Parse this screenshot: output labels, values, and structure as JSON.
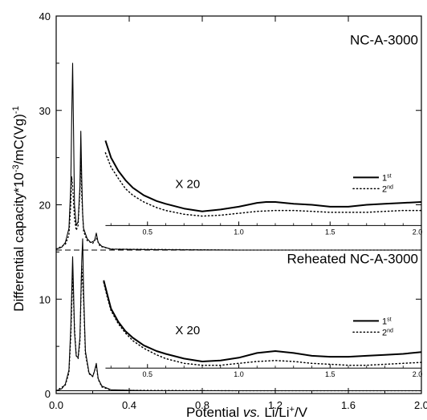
{
  "chart_data": {
    "type": "line",
    "xlabel": "Potential vs. Li/Li⁺/V",
    "xlabel_parts": {
      "pre": "Potential ",
      "vs": "vs.",
      "post": " Li/Li",
      "sup": "+",
      "tail": "/V"
    },
    "ylabel": "Differential capacity*10⁻³/mC(Vg)⁻¹",
    "ylabel_parts": {
      "pre": "Differential capacity*10",
      "sup1": "-3",
      "mid": "/mC(Vg)",
      "sup2": "-1"
    },
    "xlim": [
      0.0,
      2.0
    ],
    "ylim": [
      0,
      40
    ],
    "x_ticks": [
      "0.0",
      "0.4",
      "0.8",
      "1.2",
      "1.6",
      "2.0"
    ],
    "x_tick_values": [
      0.0,
      0.4,
      0.8,
      1.2,
      1.6,
      2.0
    ],
    "y_ticks": [
      "0",
      "10",
      "20",
      "30",
      "40"
    ],
    "y_tick_values": [
      0,
      10,
      20,
      30,
      40
    ],
    "grid": false,
    "panels": [
      {
        "title": "NC-A-3000",
        "magnification": "X 20",
        "baseline": 15.2,
        "inset_axis": {
          "y": 17.8,
          "tick_labels": [
            "0.5",
            "1.0",
            "1.5",
            "2.0"
          ],
          "tick_values": [
            0.5,
            1.0,
            1.5,
            2.0
          ]
        },
        "legend": [
          {
            "label": "1",
            "sup": "st",
            "style": "solid"
          },
          {
            "label": "2",
            "sup": "nd",
            "style": "dotted"
          }
        ],
        "series": [
          {
            "name": "1st",
            "style": "solid",
            "main_x": [
              0.0,
              0.03,
              0.05,
              0.07,
              0.08,
              0.085,
              0.09,
              0.095,
              0.1,
              0.11,
              0.12,
              0.13,
              0.135,
              0.14,
              0.145,
              0.15,
              0.17,
              0.19,
              0.21,
              0.22,
              0.23,
              0.25,
              0.3,
              0.5,
              1.0,
              1.5,
              2.0
            ],
            "main_y": [
              15.3,
              15.5,
              16.0,
              17.5,
              22.0,
              29.0,
              35.0,
              28.0,
              20.0,
              17.8,
              18.2,
              22.0,
              27.8,
              23.0,
              19.0,
              17.5,
              16.4,
              16.0,
              16.2,
              17.0,
              16.0,
              15.6,
              15.3,
              15.25,
              15.2,
              15.2,
              15.2
            ],
            "x20_x": [
              0.27,
              0.3,
              0.34,
              0.38,
              0.42,
              0.48,
              0.55,
              0.6,
              0.7,
              0.8,
              0.9,
              1.0,
              1.1,
              1.15,
              1.2,
              1.3,
              1.4,
              1.5,
              1.6,
              1.7,
              1.8,
              1.9,
              2.0
            ],
            "x20_y": [
              26.8,
              25.0,
              23.6,
              22.6,
              21.8,
              21.0,
              20.4,
              20.1,
              19.6,
              19.3,
              19.5,
              19.8,
              20.2,
              20.3,
              20.3,
              20.1,
              20.0,
              19.8,
              19.8,
              20.0,
              20.1,
              20.2,
              20.3
            ]
          },
          {
            "name": "2nd",
            "style": "dotted",
            "main_x": [
              0.0,
              0.05,
              0.07,
              0.08,
              0.085,
              0.09,
              0.1,
              0.11,
              0.12,
              0.13,
              0.135,
              0.14,
              0.15,
              0.17,
              0.2,
              0.22,
              0.24,
              0.3,
              1.0,
              2.0
            ],
            "main_y": [
              15.3,
              15.8,
              16.8,
              20.0,
              23.0,
              22.0,
              18.5,
              17.3,
              17.8,
              21.5,
              25.0,
              21.0,
              17.2,
              16.2,
              15.9,
              16.5,
              15.6,
              15.3,
              15.2,
              15.2
            ],
            "x20_x": [
              0.27,
              0.3,
              0.34,
              0.38,
              0.42,
              0.48,
              0.55,
              0.6,
              0.7,
              0.8,
              0.9,
              1.0,
              1.1,
              1.2,
              1.3,
              1.4,
              1.5,
              1.6,
              1.7,
              1.8,
              1.9,
              2.0
            ],
            "x20_y": [
              25.5,
              24.0,
              22.8,
              21.7,
              21.0,
              20.3,
              19.7,
              19.4,
              19.0,
              18.8,
              18.9,
              19.1,
              19.3,
              19.4,
              19.4,
              19.3,
              19.2,
              19.2,
              19.2,
              19.3,
              19.4,
              19.4
            ]
          }
        ]
      },
      {
        "title": "Reheated NC-A-3000",
        "magnification": "X 20",
        "baseline": 0.3,
        "inset_axis": {
          "y": 2.7,
          "tick_labels": [
            "0.5",
            "1.0",
            "1.5",
            "2.0"
          ],
          "tick_values": [
            0.5,
            1.0,
            1.5,
            2.0
          ]
        },
        "legend": [
          {
            "label": "1",
            "sup": "st",
            "style": "solid"
          },
          {
            "label": "2",
            "sup": "nd",
            "style": "dotted"
          }
        ],
        "series": [
          {
            "name": "1st",
            "style": "solid",
            "main_x": [
              0.0,
              0.03,
              0.05,
              0.07,
              0.08,
              0.09,
              0.095,
              0.1,
              0.11,
              0.12,
              0.13,
              0.14,
              0.145,
              0.15,
              0.16,
              0.18,
              0.2,
              0.21,
              0.22,
              0.23,
              0.25,
              0.3,
              0.5,
              1.0,
              2.0
            ],
            "main_y": [
              0.3,
              0.5,
              1.0,
              2.5,
              7.0,
              14.5,
              11.0,
              6.5,
              4.0,
              3.8,
              6.0,
              14.0,
              16.4,
              11.0,
              4.5,
              2.2,
              1.8,
              2.4,
              3.2,
              1.6,
              0.8,
              0.4,
              0.3,
              0.3,
              0.3
            ],
            "x20_x": [
              0.26,
              0.28,
              0.3,
              0.34,
              0.38,
              0.42,
              0.48,
              0.55,
              0.6,
              0.7,
              0.8,
              0.9,
              1.0,
              1.1,
              1.2,
              1.3,
              1.4,
              1.5,
              1.6,
              1.7,
              1.8,
              1.9,
              2.0
            ],
            "x20_y": [
              12.0,
              10.5,
              9.0,
              7.6,
              6.6,
              5.9,
              5.1,
              4.5,
              4.2,
              3.7,
              3.4,
              3.5,
              3.8,
              4.3,
              4.5,
              4.3,
              4.0,
              3.9,
              3.9,
              4.0,
              4.1,
              4.2,
              4.4
            ]
          },
          {
            "name": "2nd",
            "style": "dotted",
            "main_x": [
              0.0,
              0.05,
              0.07,
              0.08,
              0.09,
              0.1,
              0.11,
              0.12,
              0.13,
              0.14,
              0.15,
              0.16,
              0.18,
              0.2,
              0.22,
              0.23,
              0.25,
              0.3,
              1.0,
              2.0
            ],
            "main_y": [
              0.3,
              0.9,
              2.2,
              6.0,
              12.5,
              7.0,
              4.0,
              3.7,
              5.5,
              13.5,
              10.0,
              4.2,
              2.1,
              1.8,
              3.0,
              1.5,
              0.7,
              0.35,
              0.3,
              0.3
            ],
            "x20_x": [
              0.26,
              0.28,
              0.3,
              0.34,
              0.38,
              0.42,
              0.48,
              0.55,
              0.6,
              0.7,
              0.8,
              0.9,
              1.0,
              1.1,
              1.2,
              1.3,
              1.4,
              1.5,
              1.6,
              1.7,
              1.8,
              1.9,
              2.0
            ],
            "x20_y": [
              11.8,
              10.2,
              8.8,
              7.4,
              6.4,
              5.6,
              4.8,
              4.1,
              3.7,
              3.2,
              3.0,
              3.0,
              3.2,
              3.4,
              3.5,
              3.4,
              3.2,
              3.1,
              3.0,
              3.0,
              3.1,
              3.2,
              3.3
            ]
          }
        ]
      }
    ]
  }
}
